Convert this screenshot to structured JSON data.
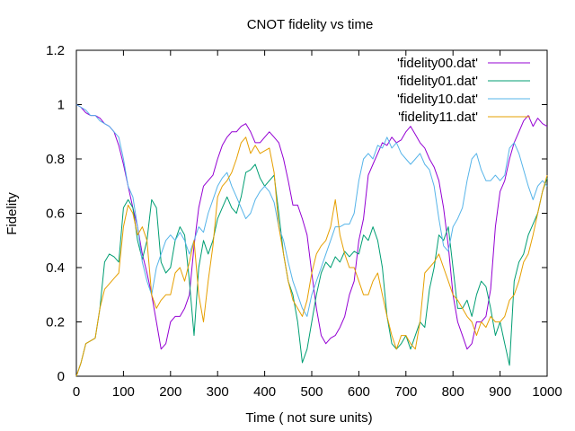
{
  "chart_data": {
    "type": "line",
    "title": "CNOT fidelity vs time",
    "xlabel": "Time ( not sure units)",
    "ylabel": "Fidelity",
    "xlim": [
      0,
      1000
    ],
    "ylim": [
      0,
      1.2
    ],
    "x_ticks": [
      0,
      100,
      200,
      300,
      400,
      500,
      600,
      700,
      800,
      900,
      1000
    ],
    "y_ticks": [
      0,
      0.2,
      0.4,
      0.6,
      0.8,
      1,
      1.2
    ],
    "x_tick_labels": [
      "0",
      "100",
      "200",
      "300",
      "400",
      "500",
      "600",
      "700",
      "800",
      "900",
      "1000"
    ],
    "y_tick_labels": [
      "0",
      "0.2",
      "0.4",
      "0.6",
      "0.8",
      "1",
      "1.2"
    ],
    "grid": false,
    "legend_position": "top-right",
    "x": [
      0,
      10,
      20,
      30,
      40,
      50,
      60,
      70,
      80,
      90,
      100,
      110,
      120,
      130,
      140,
      150,
      160,
      170,
      180,
      190,
      200,
      210,
      220,
      230,
      240,
      250,
      260,
      270,
      280,
      290,
      300,
      310,
      320,
      330,
      340,
      350,
      360,
      370,
      380,
      390,
      400,
      410,
      420,
      430,
      440,
      450,
      460,
      470,
      480,
      490,
      500,
      510,
      520,
      530,
      540,
      550,
      560,
      570,
      580,
      590,
      600,
      610,
      620,
      630,
      640,
      650,
      660,
      670,
      680,
      690,
      700,
      710,
      720,
      730,
      740,
      750,
      760,
      770,
      780,
      790,
      800,
      810,
      820,
      830,
      840,
      850,
      860,
      870,
      880,
      890,
      900,
      910,
      920,
      930,
      940,
      950,
      960,
      970,
      980,
      990,
      1000
    ],
    "series": [
      {
        "name": "'fidelity00.dat'",
        "color": "#9400d3",
        "values": [
          1.0,
          0.99,
          0.97,
          0.96,
          0.96,
          0.95,
          0.93,
          0.92,
          0.9,
          0.85,
          0.78,
          0.7,
          0.62,
          0.55,
          0.45,
          0.38,
          0.3,
          0.2,
          0.1,
          0.12,
          0.2,
          0.22,
          0.22,
          0.25,
          0.3,
          0.48,
          0.62,
          0.7,
          0.72,
          0.74,
          0.8,
          0.85,
          0.88,
          0.9,
          0.9,
          0.92,
          0.93,
          0.9,
          0.86,
          0.86,
          0.88,
          0.9,
          0.88,
          0.86,
          0.8,
          0.72,
          0.63,
          0.63,
          0.58,
          0.52,
          0.38,
          0.25,
          0.15,
          0.12,
          0.14,
          0.15,
          0.18,
          0.22,
          0.3,
          0.35,
          0.5,
          0.58,
          0.74,
          0.78,
          0.82,
          0.86,
          0.85,
          0.88,
          0.86,
          0.87,
          0.9,
          0.92,
          0.89,
          0.86,
          0.84,
          0.8,
          0.77,
          0.72,
          0.62,
          0.48,
          0.3,
          0.2,
          0.15,
          0.1,
          0.12,
          0.2,
          0.2,
          0.22,
          0.32,
          0.55,
          0.68,
          0.72,
          0.8,
          0.86,
          0.9,
          0.94,
          0.96,
          0.92,
          0.95,
          0.93,
          0.92
        ]
      },
      {
        "name": "'fidelity01.dat'",
        "color": "#009e73",
        "values": [
          0.0,
          0.05,
          0.12,
          0.13,
          0.14,
          0.25,
          0.42,
          0.45,
          0.44,
          0.42,
          0.62,
          0.65,
          0.62,
          0.5,
          0.43,
          0.5,
          0.65,
          0.62,
          0.42,
          0.38,
          0.4,
          0.5,
          0.55,
          0.52,
          0.35,
          0.15,
          0.4,
          0.5,
          0.45,
          0.5,
          0.58,
          0.62,
          0.66,
          0.62,
          0.6,
          0.66,
          0.75,
          0.76,
          0.78,
          0.73,
          0.7,
          0.72,
          0.74,
          0.6,
          0.45,
          0.35,
          0.3,
          0.2,
          0.05,
          0.1,
          0.2,
          0.3,
          0.38,
          0.42,
          0.4,
          0.44,
          0.42,
          0.46,
          0.44,
          0.46,
          0.45,
          0.52,
          0.5,
          0.55,
          0.5,
          0.4,
          0.22,
          0.12,
          0.1,
          0.12,
          0.15,
          0.1,
          0.15,
          0.2,
          0.18,
          0.32,
          0.4,
          0.52,
          0.5,
          0.55,
          0.4,
          0.25,
          0.25,
          0.28,
          0.22,
          0.3,
          0.35,
          0.33,
          0.25,
          0.15,
          0.2,
          0.12,
          0.04,
          0.35,
          0.42,
          0.45,
          0.52,
          0.56,
          0.6,
          0.68,
          0.73
        ]
      },
      {
        "name": "'fidelity10.dat'",
        "color": "#56b4e9",
        "values": [
          1.0,
          0.99,
          0.98,
          0.96,
          0.96,
          0.94,
          0.93,
          0.92,
          0.9,
          0.88,
          0.8,
          0.7,
          0.66,
          0.55,
          0.42,
          0.35,
          0.3,
          0.4,
          0.45,
          0.5,
          0.52,
          0.5,
          0.53,
          0.5,
          0.45,
          0.5,
          0.55,
          0.53,
          0.6,
          0.65,
          0.7,
          0.73,
          0.75,
          0.7,
          0.66,
          0.62,
          0.58,
          0.6,
          0.65,
          0.68,
          0.7,
          0.68,
          0.64,
          0.55,
          0.5,
          0.42,
          0.35,
          0.3,
          0.25,
          0.22,
          0.3,
          0.35,
          0.4,
          0.45,
          0.5,
          0.55,
          0.55,
          0.56,
          0.56,
          0.6,
          0.72,
          0.8,
          0.82,
          0.8,
          0.85,
          0.84,
          0.88,
          0.84,
          0.86,
          0.82,
          0.8,
          0.78,
          0.8,
          0.82,
          0.78,
          0.76,
          0.7,
          0.58,
          0.48,
          0.46,
          0.55,
          0.58,
          0.62,
          0.72,
          0.8,
          0.82,
          0.76,
          0.72,
          0.72,
          0.74,
          0.72,
          0.74,
          0.84,
          0.86,
          0.82,
          0.76,
          0.7,
          0.65,
          0.7,
          0.72,
          0.7
        ]
      },
      {
        "name": "'fidelity11.dat'",
        "color": "#e69f00",
        "values": [
          0.0,
          0.05,
          0.12,
          0.13,
          0.14,
          0.25,
          0.32,
          0.34,
          0.36,
          0.38,
          0.55,
          0.63,
          0.6,
          0.52,
          0.55,
          0.5,
          0.3,
          0.25,
          0.28,
          0.3,
          0.3,
          0.38,
          0.4,
          0.35,
          0.42,
          0.5,
          0.3,
          0.2,
          0.35,
          0.48,
          0.66,
          0.7,
          0.72,
          0.75,
          0.8,
          0.86,
          0.88,
          0.82,
          0.85,
          0.82,
          0.83,
          0.84,
          0.75,
          0.55,
          0.45,
          0.35,
          0.28,
          0.25,
          0.22,
          0.28,
          0.38,
          0.45,
          0.48,
          0.5,
          0.55,
          0.65,
          0.52,
          0.45,
          0.4,
          0.4,
          0.35,
          0.3,
          0.3,
          0.35,
          0.38,
          0.3,
          0.22,
          0.15,
          0.1,
          0.15,
          0.15,
          0.12,
          0.1,
          0.2,
          0.38,
          0.4,
          0.42,
          0.45,
          0.4,
          0.35,
          0.3,
          0.28,
          0.25,
          0.22,
          0.2,
          0.15,
          0.2,
          0.18,
          0.22,
          0.2,
          0.2,
          0.22,
          0.28,
          0.3,
          0.35,
          0.42,
          0.45,
          0.52,
          0.6,
          0.68,
          0.74
        ]
      }
    ]
  }
}
